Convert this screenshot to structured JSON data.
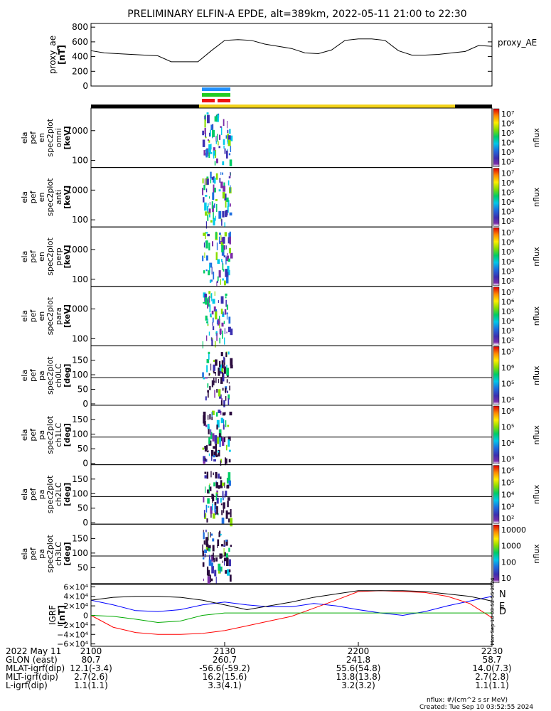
{
  "title": "PRELIMINARY ELFIN-A EPDE, alt=389km, 2022-05-11 21:00 to 22:30",
  "proxy_ae": {
    "ylabel_main": "proxy_ae",
    "ylabel_unit": "[nT]",
    "right_label": "proxy_AE",
    "yticks": [
      "800",
      "600",
      "400",
      "200",
      "0"
    ]
  },
  "status_bar": {
    "colors": [
      "#000000",
      "#f2d21b",
      "#000000"
    ]
  },
  "flags": {
    "colors": [
      "#1e90ff",
      "#22cc22",
      "#ee1111"
    ]
  },
  "spectra_en": [
    {
      "ylabel_lines": [
        "ela",
        "pef",
        "en",
        "spec2plot",
        "omni",
        "[keV]"
      ],
      "yticks": [
        "1000",
        "100"
      ],
      "cbar_ticks": [
        "10⁷",
        "10⁶",
        "10⁵",
        "10⁴",
        "10³",
        "10²"
      ],
      "cbar_label": "nflux"
    },
    {
      "ylabel_lines": [
        "ela",
        "pef",
        "en",
        "spec2plot",
        "anti",
        "[keV]"
      ],
      "yticks": [
        "1000",
        "100"
      ],
      "cbar_ticks": [
        "10⁷",
        "10⁶",
        "10⁵",
        "10⁴",
        "10³",
        "10²"
      ],
      "cbar_label": "nflux"
    },
    {
      "ylabel_lines": [
        "ela",
        "pef",
        "en",
        "spec2plot",
        "perp",
        "[keV]"
      ],
      "yticks": [
        "1000",
        "100"
      ],
      "cbar_ticks": [
        "10⁷",
        "10⁶",
        "10⁵",
        "10⁴",
        "10³",
        "10²"
      ],
      "cbar_label": "nflux"
    },
    {
      "ylabel_lines": [
        "ela",
        "pef",
        "en",
        "spec2plot",
        "para",
        "[keV]"
      ],
      "yticks": [
        "1000",
        "100"
      ],
      "cbar_ticks": [
        "10⁷",
        "10⁶",
        "10⁵",
        "10⁴",
        "10³",
        "10²"
      ],
      "cbar_label": "nflux"
    }
  ],
  "spectra_pa": [
    {
      "ylabel_lines": [
        "ela",
        "pef",
        "pa",
        "spec2plot",
        "ch0LC",
        "[deg]"
      ],
      "yticks": [
        "150",
        "100",
        "50",
        "0"
      ],
      "cbar_ticks": [
        "10⁷",
        "10⁶",
        "10⁵",
        "10⁴"
      ],
      "cbar_label": "nflux"
    },
    {
      "ylabel_lines": [
        "ela",
        "pef",
        "pa",
        "spec2plot",
        "ch1LC",
        "[deg]"
      ],
      "yticks": [
        "150",
        "100",
        "50",
        "0"
      ],
      "cbar_ticks": [
        "10⁶",
        "10⁵",
        "10⁴",
        "10³"
      ],
      "cbar_label": "nflux"
    },
    {
      "ylabel_lines": [
        "ela",
        "pef",
        "pa",
        "spec2plot",
        "ch2LC",
        "[deg]"
      ],
      "yticks": [
        "150",
        "100",
        "50",
        "0"
      ],
      "cbar_ticks": [
        "10⁶",
        "10⁵",
        "10⁴",
        "10³",
        "10²"
      ],
      "cbar_label": "nflux"
    },
    {
      "ylabel_lines": [
        "ela",
        "pef",
        "pa",
        "spec2plot",
        "ch3LC",
        "[deg]"
      ],
      "yticks": [
        "150",
        "100",
        "50"
      ],
      "cbar_ticks": [
        "10000",
        "1000",
        "100",
        "10"
      ],
      "cbar_label": "nflux"
    }
  ],
  "igrf": {
    "ylabel": "IGRF",
    "unit": "[nT]",
    "yticks": [
      "6×10⁴",
      "4×10⁴",
      "2×10⁴",
      "0",
      "−2×10⁴",
      "−4×10⁴",
      "−6×10⁴"
    ],
    "legend": [
      {
        "label": "N",
        "color": "#0000ff"
      },
      {
        "label": "E",
        "color": "#ff0000"
      },
      {
        "label": "D",
        "color": "#00aa00"
      }
    ],
    "side_stamp": "Mon Sep 10 03:52:55 2024"
  },
  "xaxis": {
    "date_label": "2022 May 11",
    "ticks": [
      "2100",
      "2130",
      "2200",
      "2230"
    ]
  },
  "orbit_rows": [
    {
      "label": "GLON (east)",
      "values": [
        "80.7",
        "260.7",
        "241.8",
        "58.7"
      ]
    },
    {
      "label": "MLAT-igrf(dip)",
      "values": [
        "12.1(-3.4)",
        "-56.6(-59.2)",
        "55.6(54.8)",
        "14.0(7.3)"
      ]
    },
    {
      "label": "MLT-igrf(dip)",
      "values": [
        "2.7(2.6)",
        "16.2(15.6)",
        "13.8(13.8)",
        "2.7(2.8)"
      ]
    },
    {
      "label": "L-igrf(dip)",
      "values": [
        "1.1(1.1)",
        "3.3(4.1)",
        "3.2(3.2)",
        "1.1(1.1)"
      ]
    }
  ],
  "footer": {
    "units": "nflux: #/(cm^2 s sr MeV)",
    "created": "Created: Tue Sep 10 03:52:55 2024"
  },
  "chart_data": [
    {
      "type": "line",
      "name": "proxy_AE",
      "x": [
        "21:00",
        "21:03",
        "21:06",
        "21:09",
        "21:12",
        "21:15",
        "21:18",
        "21:21",
        "21:24",
        "21:27",
        "21:30",
        "21:33",
        "21:36",
        "21:39",
        "21:42",
        "21:45",
        "21:48",
        "21:51",
        "21:54",
        "21:57",
        "22:00",
        "22:03",
        "22:06",
        "22:09",
        "22:12",
        "22:15",
        "22:18",
        "22:21",
        "22:24",
        "22:27",
        "22:30"
      ],
      "y": [
        480,
        450,
        440,
        430,
        420,
        410,
        330,
        330,
        330,
        480,
        620,
        630,
        620,
        570,
        540,
        510,
        450,
        440,
        490,
        620,
        640,
        640,
        620,
        480,
        420,
        420,
        430,
        450,
        470,
        550,
        540
      ],
      "ylim": [
        0,
        850
      ],
      "ylabel": "proxy_ae [nT]"
    },
    {
      "type": "line",
      "x": [
        "21:00",
        "21:05",
        "21:10",
        "21:15",
        "21:20",
        "21:25",
        "21:30",
        "21:35",
        "21:40",
        "21:45",
        "21:50",
        "21:55",
        "22:00",
        "22:05",
        "22:10",
        "22:15",
        "22:20",
        "22:25",
        "22:30"
      ],
      "series": [
        {
          "name": "N",
          "color": "#0000ff",
          "values": [
            32000,
            22000,
            10000,
            8000,
            12000,
            22000,
            28000,
            22000,
            18000,
            18000,
            25000,
            20000,
            12000,
            5000,
            0,
            8000,
            20000,
            30000,
            40000
          ]
        },
        {
          "name": "E",
          "color": "#ff0000",
          "values": [
            0,
            -25000,
            -36000,
            -40000,
            -40000,
            -38000,
            -32000,
            -22000,
            -12000,
            -2000,
            15000,
            32000,
            50000,
            52000,
            50000,
            48000,
            40000,
            25000,
            -5000
          ]
        },
        {
          "name": "D",
          "color": "#00aa00",
          "values": [
            0,
            -2000,
            -8000,
            -15000,
            -12000,
            0,
            5000,
            5000,
            5000,
            5000,
            5000,
            5000,
            5000,
            5000,
            5000,
            5000,
            5000,
            5000,
            5000
          ]
        },
        {
          "name": "",
          "color": "#000000",
          "values": [
            32000,
            38000,
            40000,
            40000,
            38000,
            32000,
            22000,
            12000,
            20000,
            28000,
            38000,
            45000,
            52000,
            52000,
            52000,
            50000,
            45000,
            40000,
            30000
          ]
        }
      ],
      "ylim": [
        -65000,
        65000
      ],
      "ylabel": "IGRF [nT]"
    }
  ]
}
